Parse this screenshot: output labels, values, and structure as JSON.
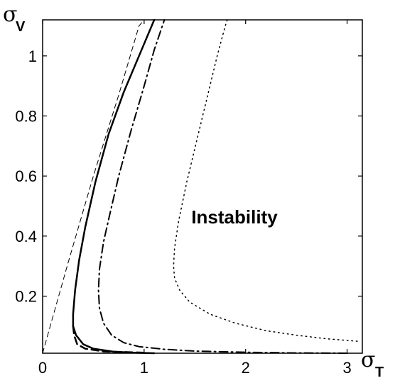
{
  "chart_data": {
    "type": "line",
    "xlabel": {
      "symbol": "σ",
      "subscript": "T"
    },
    "ylabel": {
      "symbol": "σ",
      "subscript": "V"
    },
    "xlim": [
      0,
      3.15
    ],
    "ylim": [
      0.01,
      1.12
    ],
    "xticks": [
      0,
      1,
      2,
      3
    ],
    "xtick_labels": [
      "0",
      "1",
      "2",
      "3"
    ],
    "yticks": [
      0.2,
      0.4,
      0.6,
      0.8,
      1.0
    ],
    "ytick_labels": [
      "0.2",
      "0.4",
      "0.6",
      "0.8",
      "1"
    ],
    "grid": false,
    "legend": "none",
    "annotations": [
      {
        "text": "Instability",
        "x": 1.95,
        "y": 0.36
      }
    ],
    "series": [
      {
        "style": "dashed-thin",
        "points": [
          [
            0,
            0.01
          ],
          [
            0.05,
            0.07
          ],
          [
            0.25,
            0.31
          ],
          [
            0.5,
            0.6
          ],
          [
            0.75,
            0.87
          ],
          [
            0.95,
            1.1
          ],
          [
            1.0,
            1.12
          ]
        ]
      },
      {
        "style": "solid",
        "points": [
          [
            1.1,
            0.01
          ],
          [
            0.9,
            0.012
          ],
          [
            0.7,
            0.015
          ],
          [
            0.5,
            0.025
          ],
          [
            0.4,
            0.04
          ],
          [
            0.33,
            0.07
          ],
          [
            0.3,
            0.1
          ],
          [
            0.3,
            0.14
          ],
          [
            0.32,
            0.22
          ],
          [
            0.36,
            0.32
          ],
          [
            0.42,
            0.43
          ],
          [
            0.52,
            0.58
          ],
          [
            0.65,
            0.74
          ],
          [
            0.8,
            0.88
          ],
          [
            0.95,
            1.0
          ],
          [
            1.1,
            1.12
          ]
        ]
      },
      {
        "style": "dashed-thick",
        "points": [
          [
            0.3,
            0.1
          ],
          [
            0.31,
            0.07
          ],
          [
            0.34,
            0.04
          ],
          [
            0.42,
            0.025
          ],
          [
            0.6,
            0.016
          ],
          [
            1.0,
            0.012
          ]
        ]
      },
      {
        "style": "dash-dot",
        "points": [
          [
            3.0,
            0.01
          ],
          [
            2.5,
            0.011
          ],
          [
            2.0,
            0.013
          ],
          [
            1.5,
            0.017
          ],
          [
            1.2,
            0.023
          ],
          [
            0.95,
            0.032
          ],
          [
            0.8,
            0.045
          ],
          [
            0.68,
            0.07
          ],
          [
            0.6,
            0.11
          ],
          [
            0.56,
            0.16
          ],
          [
            0.55,
            0.22
          ],
          [
            0.56,
            0.29
          ],
          [
            0.6,
            0.38
          ],
          [
            0.66,
            0.47
          ],
          [
            0.75,
            0.6
          ],
          [
            0.87,
            0.75
          ],
          [
            1.0,
            0.9
          ],
          [
            1.1,
            1.02
          ],
          [
            1.2,
            1.12
          ]
        ]
      },
      {
        "style": "dotted",
        "points": [
          [
            3.1,
            0.05
          ],
          [
            2.8,
            0.058
          ],
          [
            2.5,
            0.07
          ],
          [
            2.2,
            0.085
          ],
          [
            1.9,
            0.11
          ],
          [
            1.65,
            0.14
          ],
          [
            1.45,
            0.18
          ],
          [
            1.35,
            0.22
          ],
          [
            1.3,
            0.26
          ],
          [
            1.29,
            0.3
          ],
          [
            1.3,
            0.36
          ],
          [
            1.34,
            0.45
          ],
          [
            1.42,
            0.58
          ],
          [
            1.52,
            0.72
          ],
          [
            1.62,
            0.86
          ],
          [
            1.72,
            1.0
          ],
          [
            1.8,
            1.1
          ],
          [
            1.82,
            1.12
          ]
        ]
      }
    ]
  }
}
